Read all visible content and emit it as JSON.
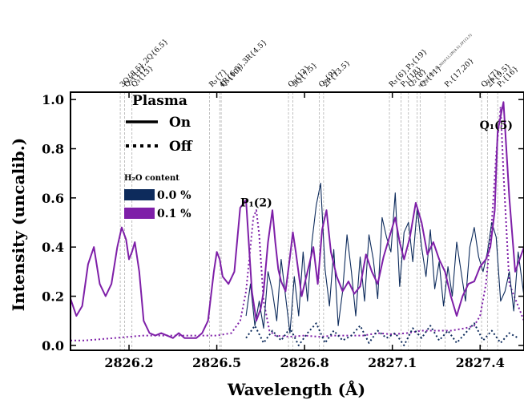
{
  "chart_data": {
    "type": "line",
    "xlabel": "Wavelength (Å)",
    "ylabel": "Intensity (uncalib.)",
    "xlim": [
      2826.0,
      2827.55
    ],
    "ylim": [
      -0.02,
      1.03
    ],
    "x_ticks": [
      2826.2,
      2826.5,
      2826.8,
      2827.1,
      2827.4
    ],
    "x_tick_labels": [
      "2826.2",
      "2826.5",
      "2826.8",
      "2827.1",
      "2827.4"
    ],
    "y_ticks": [
      0.0,
      0.2,
      0.4,
      0.6,
      0.8,
      1.0
    ],
    "y_tick_labels": [
      "0.0",
      "0.2",
      "0.4",
      "0.6",
      "0.8",
      "1.0"
    ],
    "legend_plasma": {
      "title": "Plasma",
      "on_label": "On",
      "off_label": "Off"
    },
    "legend_h2o": {
      "title": "H₂O content",
      "entries": [
        {
          "label": "0.0 %",
          "color": "#0d2b5c"
        },
        {
          "label": "0.1 %",
          "color": "#7e1fa8"
        }
      ]
    },
    "peak_annotations": [
      {
        "text": "P₁(2)",
        "x": 2826.635,
        "y": 0.565
      },
      {
        "text": "Q₁(5)",
        "x": 2827.455,
        "y": 0.88
      }
    ],
    "line_assignments": [
      {
        "x": 2826.17,
        "label": "3Q{8.5},2Q{6.5}"
      },
      {
        "x": 2826.185,
        "label": "Q₂{11}"
      },
      {
        "x": 2826.21,
        "label": "Q₃{13}"
      },
      {
        "x": 2826.475,
        "label": "R₃{7}"
      },
      {
        "x": 2826.51,
        "label": "4R{6.5},3R{4.5}"
      },
      {
        "x": 2826.515,
        "label": "Q₂{10}"
      },
      {
        "x": 2826.745,
        "label": "Q₃{12}"
      },
      {
        "x": 2826.76,
        "label": "3Q{7.5}"
      },
      {
        "x": 2826.85,
        "label": "Q₂{9}"
      },
      {
        "x": 2826.865,
        "label": "2P{13.5}"
      },
      {
        "x": 2827.09,
        "label": "R₃{6},P₃{19}"
      },
      {
        "x": 2827.13,
        "label": "P₁{18}"
      },
      {
        "x": 2827.155,
        "label": "Q₂{8}"
      },
      {
        "x": 2827.185,
        "label": "2Q{8.5},4R{7.5},3Q{6.5},2R{4.5},2P{12.5}"
      },
      {
        "x": 2827.195,
        "label": "Q₃{11}"
      },
      {
        "x": 2827.28,
        "label": "P₁{17,20}"
      },
      {
        "x": 2827.405,
        "label": "Q₂{7}"
      },
      {
        "x": 2827.425,
        "label": "2P{9.5}"
      },
      {
        "x": 2827.46,
        "label": "P₁{16}"
      }
    ],
    "series": [
      {
        "name": "0.1 %, On",
        "color": "#7e1fa8",
        "style": "solid",
        "x": [
          2826.0,
          2826.02,
          2826.04,
          2826.06,
          2826.08,
          2826.1,
          2826.12,
          2826.14,
          2826.16,
          2826.175,
          2826.19,
          2826.2,
          2826.21,
          2826.22,
          2826.235,
          2826.25,
          2826.27,
          2826.29,
          2826.31,
          2826.33,
          2826.35,
          2826.37,
          2826.39,
          2826.41,
          2826.43,
          2826.45,
          2826.47,
          2826.49,
          2826.5,
          2826.51,
          2826.52,
          2826.54,
          2826.56,
          2826.58,
          2826.6,
          2826.62,
          2826.635,
          2826.65,
          2826.66,
          2826.675,
          2826.69,
          2826.7,
          2826.71,
          2826.72,
          2826.735,
          2826.75,
          2826.76,
          2826.77,
          2826.79,
          2826.81,
          2826.83,
          2826.845,
          2826.86,
          2826.875,
          2826.89,
          2826.91,
          2826.93,
          2826.95,
          2826.97,
          2826.99,
          2827.01,
          2827.03,
          2827.05,
          2827.07,
          2827.09,
          2827.11,
          2827.125,
          2827.14,
          2827.16,
          2827.18,
          2827.2,
          2827.22,
          2827.24,
          2827.26,
          2827.28,
          2827.3,
          2827.32,
          2827.34,
          2827.36,
          2827.38,
          2827.4,
          2827.42,
          2827.435,
          2827.45,
          2827.46,
          2827.48,
          2827.5,
          2827.52,
          2827.55
        ],
        "y": [
          0.19,
          0.12,
          0.16,
          0.33,
          0.4,
          0.25,
          0.2,
          0.25,
          0.4,
          0.48,
          0.43,
          0.35,
          0.38,
          0.42,
          0.3,
          0.1,
          0.05,
          0.04,
          0.05,
          0.04,
          0.03,
          0.05,
          0.03,
          0.03,
          0.03,
          0.05,
          0.1,
          0.3,
          0.38,
          0.35,
          0.28,
          0.25,
          0.3,
          0.56,
          0.59,
          0.22,
          0.1,
          0.15,
          0.22,
          0.42,
          0.55,
          0.42,
          0.31,
          0.26,
          0.22,
          0.36,
          0.46,
          0.38,
          0.2,
          0.3,
          0.4,
          0.25,
          0.47,
          0.55,
          0.38,
          0.28,
          0.22,
          0.26,
          0.21,
          0.24,
          0.37,
          0.3,
          0.25,
          0.36,
          0.44,
          0.52,
          0.42,
          0.35,
          0.44,
          0.58,
          0.5,
          0.37,
          0.42,
          0.35,
          0.3,
          0.2,
          0.12,
          0.2,
          0.25,
          0.26,
          0.32,
          0.35,
          0.4,
          0.55,
          0.87,
          0.99,
          0.6,
          0.3,
          0.4
        ]
      },
      {
        "name": "0.0 %, On",
        "color": "#0d2b5c",
        "style": "solid",
        "x": [
          2826.6,
          2826.615,
          2826.63,
          2826.645,
          2826.66,
          2826.675,
          2826.69,
          2826.705,
          2826.72,
          2826.735,
          2826.75,
          2826.765,
          2826.78,
          2826.795,
          2826.81,
          2826.825,
          2826.84,
          2826.855,
          2826.87,
          2826.885,
          2826.9,
          2826.915,
          2826.93,
          2826.945,
          2826.96,
          2826.975,
          2826.99,
          2827.005,
          2827.02,
          2827.035,
          2827.05,
          2827.065,
          2827.08,
          2827.095,
          2827.11,
          2827.125,
          2827.14,
          2827.155,
          2827.17,
          2827.185,
          2827.2,
          2827.215,
          2827.23,
          2827.245,
          2827.26,
          2827.275,
          2827.29,
          2827.305,
          2827.32,
          2827.335,
          2827.35,
          2827.365,
          2827.38,
          2827.395,
          2827.41,
          2827.425,
          2827.44,
          2827.455,
          2827.47,
          2827.485,
          2827.5,
          2827.515,
          2827.53,
          2827.55
        ],
        "y": [
          0.12,
          0.25,
          0.08,
          0.18,
          0.07,
          0.3,
          0.22,
          0.1,
          0.35,
          0.2,
          0.05,
          0.28,
          0.12,
          0.38,
          0.18,
          0.42,
          0.57,
          0.66,
          0.31,
          0.16,
          0.39,
          0.08,
          0.22,
          0.45,
          0.3,
          0.12,
          0.36,
          0.18,
          0.45,
          0.35,
          0.19,
          0.52,
          0.44,
          0.38,
          0.62,
          0.24,
          0.46,
          0.5,
          0.34,
          0.56,
          0.4,
          0.28,
          0.47,
          0.23,
          0.34,
          0.16,
          0.32,
          0.2,
          0.42,
          0.3,
          0.18,
          0.4,
          0.48,
          0.36,
          0.3,
          0.38,
          0.5,
          0.44,
          0.18,
          0.22,
          0.3,
          0.14,
          0.38,
          0.2
        ]
      },
      {
        "name": "0.1 %, Off",
        "color": "#7e1fa8",
        "style": "dotted",
        "x": [
          2826.0,
          2826.05,
          2826.1,
          2826.15,
          2826.2,
          2826.25,
          2826.3,
          2826.35,
          2826.4,
          2826.45,
          2826.5,
          2826.55,
          2826.58,
          2826.6,
          2826.615,
          2826.625,
          2826.635,
          2826.645,
          2826.66,
          2826.68,
          2826.7,
          2826.75,
          2826.8,
          2826.85,
          2826.9,
          2826.95,
          2827.0,
          2827.05,
          2827.1,
          2827.15,
          2827.2,
          2827.25,
          2827.3,
          2827.35,
          2827.38,
          2827.4,
          2827.42,
          2827.44,
          2827.455,
          2827.47,
          2827.48,
          2827.5,
          2827.55
        ],
        "y": [
          0.02,
          0.02,
          0.025,
          0.03,
          0.035,
          0.04,
          0.04,
          0.04,
          0.04,
          0.04,
          0.04,
          0.05,
          0.1,
          0.22,
          0.4,
          0.52,
          0.55,
          0.45,
          0.18,
          0.06,
          0.04,
          0.035,
          0.04,
          0.035,
          0.04,
          0.04,
          0.04,
          0.05,
          0.045,
          0.05,
          0.06,
          0.06,
          0.06,
          0.07,
          0.08,
          0.12,
          0.25,
          0.5,
          0.78,
          0.97,
          0.7,
          0.25,
          0.1
        ]
      },
      {
        "name": "0.0 %, Off",
        "color": "#0d2b5c",
        "style": "dotted",
        "x": [
          2826.6,
          2826.63,
          2826.66,
          2826.69,
          2826.72,
          2826.75,
          2826.78,
          2826.81,
          2826.84,
          2826.87,
          2826.9,
          2826.93,
          2826.96,
          2826.99,
          2827.02,
          2827.05,
          2827.08,
          2827.11,
          2827.14,
          2827.17,
          2827.2,
          2827.23,
          2827.26,
          2827.29,
          2827.32,
          2827.35,
          2827.38,
          2827.41,
          2827.44,
          2827.47,
          2827.5,
          2827.53
        ],
        "y": [
          0.03,
          0.08,
          0.01,
          0.06,
          0.02,
          0.07,
          0.0,
          0.05,
          0.09,
          0.01,
          0.06,
          0.02,
          0.04,
          0.08,
          0.01,
          0.06,
          0.03,
          0.05,
          0.0,
          0.07,
          0.03,
          0.08,
          0.02,
          0.06,
          0.01,
          0.05,
          0.09,
          0.02,
          0.06,
          0.01,
          0.05,
          0.03
        ]
      }
    ]
  }
}
